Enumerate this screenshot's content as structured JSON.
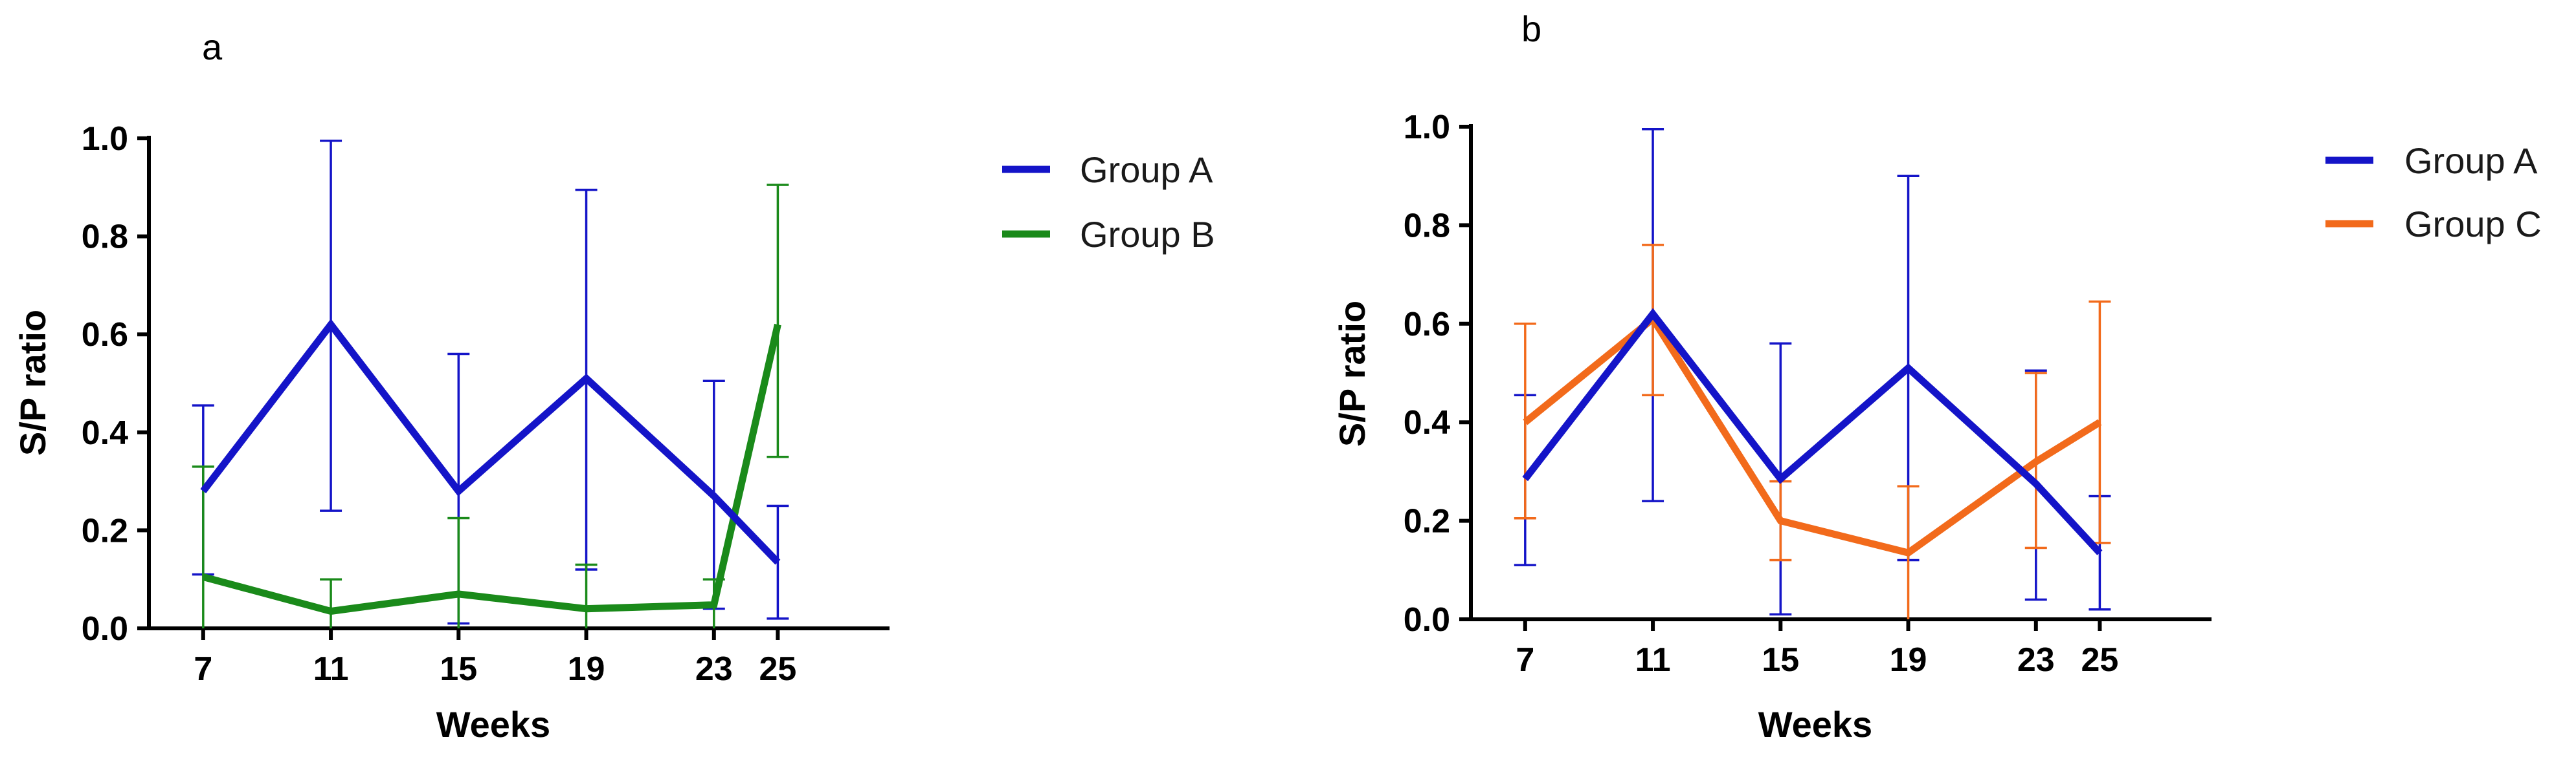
{
  "chart_data": [
    {
      "panel": "a",
      "type": "line",
      "xlabel": "Weeks",
      "ylabel": "S/P ratio",
      "x": [
        7,
        11,
        15,
        19,
        23,
        25
      ],
      "x_tick_labels": [
        "7",
        "11",
        "15",
        "19",
        "23",
        "25"
      ],
      "ylim": [
        0,
        1.0
      ],
      "y_ticks": [
        0.0,
        0.2,
        0.4,
        0.6,
        0.8,
        1.0
      ],
      "y_tick_labels": [
        "0.0",
        "0.2",
        "0.4",
        "0.6",
        "0.8",
        "1.0"
      ],
      "legend_position": "right",
      "series": [
        {
          "name": "Group A",
          "color": "#1414c8",
          "values": [
            0.28,
            0.62,
            0.28,
            0.51,
            0.27,
            0.135
          ],
          "error_low": [
            0.11,
            0.24,
            0.01,
            0.12,
            0.04,
            0.02
          ],
          "error_high": [
            0.455,
            0.995,
            0.56,
            0.895,
            0.505,
            0.25
          ]
        },
        {
          "name": "Group B",
          "color": "#1a8a1a",
          "values": [
            0.105,
            0.035,
            0.07,
            0.04,
            0.048,
            0.62
          ],
          "error_low": [
            0.0,
            0.0,
            0.0,
            0.0,
            0.0,
            0.35
          ],
          "error_high": [
            0.33,
            0.1,
            0.225,
            0.13,
            0.1,
            0.905
          ]
        }
      ]
    },
    {
      "panel": "b",
      "type": "line",
      "xlabel": "Weeks",
      "ylabel": "S/P ratio",
      "x": [
        7,
        11,
        15,
        19,
        23,
        25
      ],
      "x_tick_labels": [
        "7",
        "11",
        "15",
        "19",
        "23",
        "25"
      ],
      "ylim": [
        0,
        1.0
      ],
      "y_ticks": [
        0.0,
        0.2,
        0.4,
        0.6,
        0.8,
        1.0
      ],
      "y_tick_labels": [
        "0.0",
        "0.2",
        "0.4",
        "0.6",
        "0.8",
        "1.0"
      ],
      "legend_position": "right",
      "series": [
        {
          "name": "Group A",
          "color": "#1414c8",
          "values": [
            0.285,
            0.62,
            0.285,
            0.51,
            0.275,
            0.135
          ],
          "error_low": [
            0.11,
            0.24,
            0.01,
            0.12,
            0.04,
            0.02
          ],
          "error_high": [
            0.455,
            0.995,
            0.56,
            0.9,
            0.505,
            0.25
          ]
        },
        {
          "name": "Group C",
          "color": "#f26a1b",
          "values": [
            0.4,
            0.61,
            0.2,
            0.135,
            0.32,
            0.4
          ],
          "error_low": [
            0.205,
            0.455,
            0.12,
            0.0,
            0.145,
            0.155
          ],
          "error_high": [
            0.6,
            0.76,
            0.28,
            0.27,
            0.5,
            0.645
          ]
        }
      ]
    }
  ]
}
